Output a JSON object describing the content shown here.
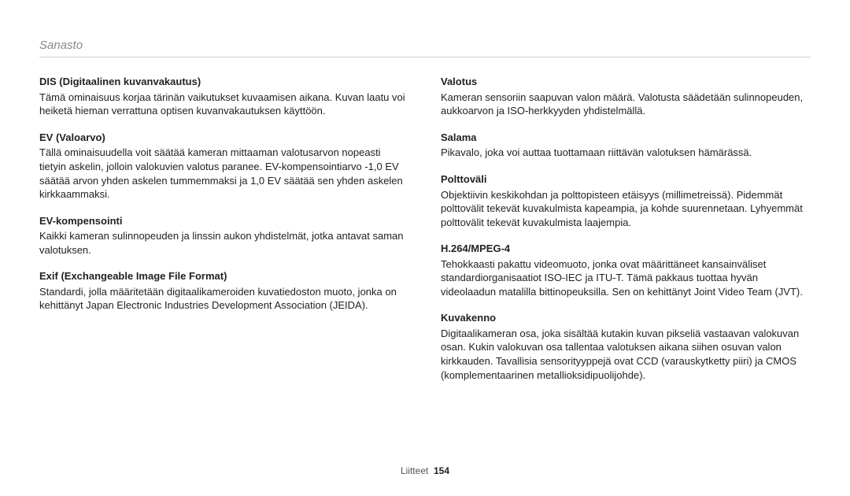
{
  "header": {
    "title": "Sanasto"
  },
  "columns": {
    "left": [
      {
        "term": "DIS (Digitaalinen kuvanvakautus)",
        "def": "Tämä ominaisuus korjaa tärinän vaikutukset kuvaamisen aikana. Kuvan laatu voi heiketä hieman verrattuna optisen kuvanvakautuksen käyttöön."
      },
      {
        "term": "EV (Valoarvo)",
        "def": "Tällä ominaisuudella voit säätää kameran mittaaman valotusarvon nopeasti tietyin askelin, jolloin valokuvien valotus paranee. EV-kompensointiarvo -1,0 EV säätää arvon yhden askelen tummemmaksi ja 1,0 EV säätää sen yhden askelen kirkkaammaksi."
      },
      {
        "term": "EV-kompensointi",
        "def": "Kaikki kameran sulinnopeuden ja linssin aukon yhdistelmät, jotka antavat saman valotuksen."
      },
      {
        "term": "Exif (Exchangeable Image File Format)",
        "def": "Standardi, jolla määritetään digitaalikameroiden kuvatiedoston muoto, jonka on kehittänyt Japan Electronic Industries Development Association (JEIDA)."
      }
    ],
    "right": [
      {
        "term": "Valotus",
        "def": "Kameran sensoriin saapuvan valon määrä. Valotusta säädetään sulinnopeuden, aukkoarvon ja ISO-herkkyyden yhdistelmällä."
      },
      {
        "term": "Salama",
        "def": "Pikavalo, joka voi auttaa tuottamaan riittävän valotuksen hämärässä."
      },
      {
        "term": "Polttoväli",
        "def": "Objektiivin keskikohdan ja polttopisteen etäisyys (millimetreissä). Pidemmät polttovälit tekevät kuvakulmista kapeampia, ja kohde suurennetaan. Lyhyemmät polttovälit tekevät kuvakulmista laajempia."
      },
      {
        "term": "H.264/MPEG-4",
        "def": "Tehokkaasti pakattu videomuoto, jonka ovat määrittäneet kansainväliset standardiorganisaatiot ISO-IEC ja ITU-T. Tämä pakkaus tuottaa hyvän videolaadun matalilla bittinopeuksilla. Sen on kehittänyt Joint Video Team (JVT)."
      },
      {
        "term": "Kuvakenno",
        "def": "Digitaalikameran osa, joka sisältää kutakin kuvan pikseliä vastaavan valokuvan osan. Kukin valokuvan osa tallentaa valotuksen aikana siihen osuvan valon kirkkauden. Tavallisia sensorityyppejä ovat CCD (varauskytketty piiri) ja CMOS (komplementaarinen metallioksidipuolijohde)."
      }
    ]
  },
  "footer": {
    "section": "Liitteet",
    "page_number": "154"
  }
}
